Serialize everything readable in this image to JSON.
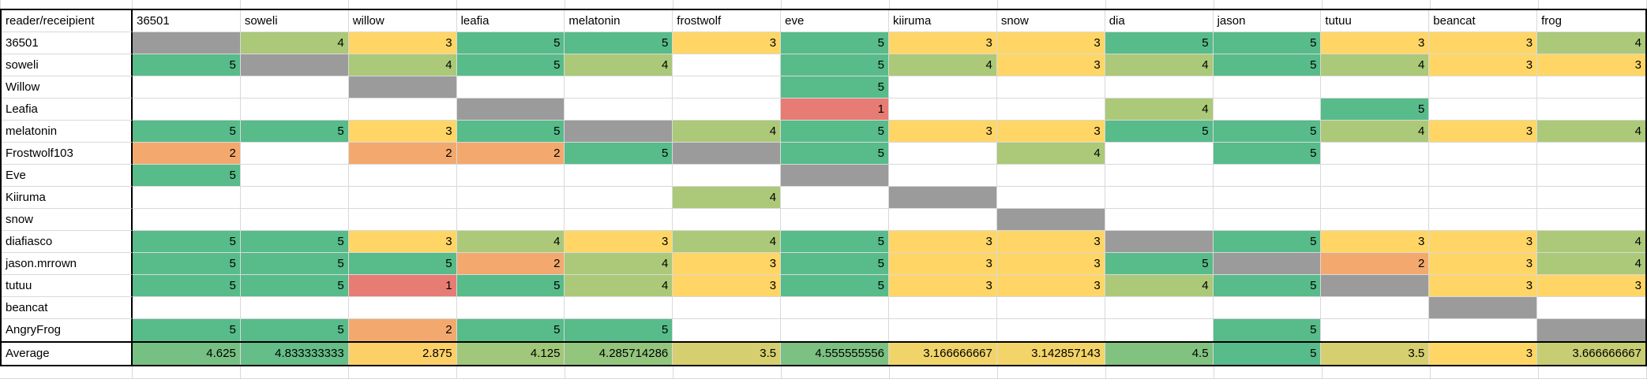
{
  "sheet": {
    "corner_label": "reader/receipient",
    "columns": [
      "36501",
      "soweli",
      "willow",
      "leafia",
      "melatonin",
      "frostwolf",
      "eve",
      "kiiruma",
      "snow",
      "dia",
      "jason",
      "tutuu",
      "beancat",
      "frog"
    ],
    "rows": [
      {
        "label": "36501",
        "diag": 0,
        "cells": [
          "",
          "4",
          "3",
          "5",
          "5",
          "3",
          "5",
          "3",
          "3",
          "5",
          "5",
          "3",
          "3",
          "4"
        ]
      },
      {
        "label": "soweli",
        "diag": 1,
        "cells": [
          "5",
          "",
          "4",
          "5",
          "4",
          "",
          "5",
          "4",
          "3",
          "4",
          "5",
          "4",
          "3",
          "3"
        ]
      },
      {
        "label": "Willow",
        "diag": 2,
        "cells": [
          "",
          "",
          "",
          "",
          "",
          "",
          "5",
          "",
          "",
          "",
          "",
          "",
          "",
          ""
        ]
      },
      {
        "label": "Leafia",
        "diag": 3,
        "cells": [
          "",
          "",
          "",
          "",
          "",
          "",
          "1",
          "",
          "",
          "4",
          "",
          "5",
          "",
          ""
        ]
      },
      {
        "label": "melatonin",
        "diag": 4,
        "cells": [
          "5",
          "5",
          "3",
          "5",
          "",
          "4",
          "5",
          "3",
          "3",
          "5",
          "5",
          "4",
          "3",
          "4"
        ]
      },
      {
        "label": "Frostwolf103",
        "diag": 5,
        "cells": [
          "2",
          "",
          "2",
          "2",
          "5",
          "",
          "5",
          "",
          "4",
          "",
          "5",
          "",
          "",
          ""
        ]
      },
      {
        "label": "Eve",
        "diag": 6,
        "cells": [
          "5",
          "",
          "",
          "",
          "",
          "",
          "",
          "",
          "",
          "",
          "",
          "",
          "",
          ""
        ]
      },
      {
        "label": "Kiiruma",
        "diag": 7,
        "cells": [
          "",
          "",
          "",
          "",
          "",
          "4",
          "",
          "",
          "",
          "",
          "",
          "",
          "",
          ""
        ]
      },
      {
        "label": "snow",
        "diag": 8,
        "cells": [
          "",
          "",
          "",
          "",
          "",
          "",
          "",
          "",
          "",
          "",
          "",
          "",
          "",
          ""
        ]
      },
      {
        "label": "diafiasco",
        "diag": 9,
        "cells": [
          "5",
          "5",
          "3",
          "4",
          "3",
          "4",
          "5",
          "3",
          "3",
          "",
          "5",
          "3",
          "3",
          "4"
        ]
      },
      {
        "label": "jason.mrrown",
        "diag": 10,
        "cells": [
          "5",
          "5",
          "5",
          "2",
          "4",
          "3",
          "5",
          "3",
          "3",
          "5",
          "",
          "2",
          "3",
          "4"
        ]
      },
      {
        "label": "tutuu",
        "diag": 11,
        "cells": [
          "5",
          "5",
          "1",
          "5",
          "4",
          "3",
          "5",
          "3",
          "3",
          "4",
          "5",
          "",
          "3",
          "3"
        ]
      },
      {
        "label": "beancat",
        "diag": 12,
        "cells": [
          "",
          "",
          "",
          "",
          "",
          "",
          "",
          "",
          "",
          "",
          "",
          "",
          "",
          ""
        ]
      },
      {
        "label": "AngryFrog",
        "diag": 13,
        "cells": [
          "5",
          "5",
          "2",
          "5",
          "5",
          "",
          "",
          "",
          "",
          "",
          "5",
          "",
          "",
          ""
        ]
      }
    ],
    "average": {
      "label": "Average",
      "cells": [
        "4.625",
        "4.833333333",
        "2.875",
        "4.125",
        "4.285714286",
        "3.5",
        "4.555555556",
        "3.166666667",
        "3.142857143",
        "4.5",
        "5",
        "3.5",
        "3",
        "3.666666667"
      ]
    },
    "colors": {
      "scale_low": "#E67C73",
      "scale_mid": "#FFD666",
      "scale_high": "#57BB8A",
      "diagonal": "#9B9B9B",
      "gridline": "#D9D9D9",
      "table_border": "#000000",
      "background": "#FFFFFF"
    }
  }
}
